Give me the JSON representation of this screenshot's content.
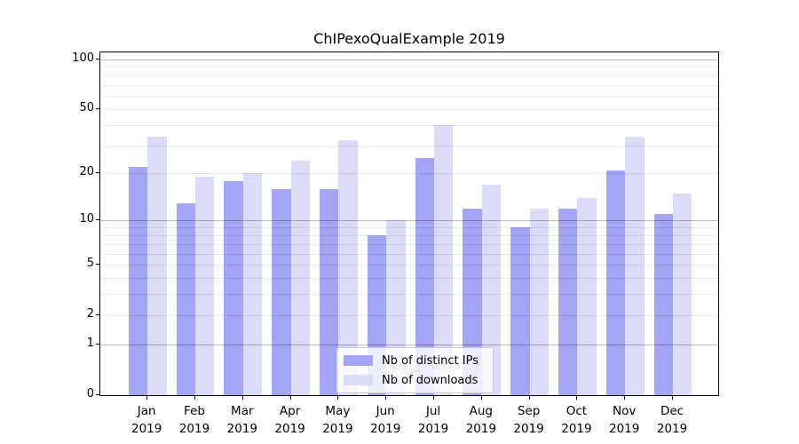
{
  "chart_data": {
    "type": "bar",
    "title": "ChIPexoQualExample 2019",
    "categories": [
      "Jan",
      "Feb",
      "Mar",
      "Apr",
      "May",
      "Jun",
      "Jul",
      "Aug",
      "Sep",
      "Oct",
      "Nov",
      "Dec"
    ],
    "year_label": "2019",
    "series": [
      {
        "name": "Nb of distinct IPs",
        "color": "#a5a5f6",
        "values": [
          22,
          13,
          18,
          16,
          16,
          8,
          25,
          12,
          9,
          12,
          21,
          11
        ]
      },
      {
        "name": "Nb of downloads",
        "color": "#dcdcf9",
        "values": [
          34,
          19,
          20,
          24,
          32,
          10,
          40,
          17,
          12,
          14,
          34,
          15
        ]
      }
    ],
    "y_axis": {
      "scale": "log1p",
      "tick_values": [
        100,
        50,
        20,
        10,
        5,
        2,
        1,
        0
      ],
      "tick_labels": [
        "100",
        "50",
        "20",
        "10",
        "5",
        "2",
        "1",
        "0"
      ],
      "major_gridlines": [
        1,
        10,
        100
      ],
      "minor_gridlines": [
        2,
        3,
        4,
        5,
        6,
        7,
        8,
        9,
        20,
        30,
        40,
        50,
        60,
        70,
        80,
        90
      ],
      "top_value": 110
    },
    "legend": {
      "position": "lower-center",
      "entries": [
        "Nb of distinct IPs",
        "Nb of downloads"
      ]
    },
    "grid": true,
    "grid_above_bars": true
  },
  "colors": {
    "background": "#ffffff",
    "spine": "#000000",
    "minor_grid": "rgba(0,0,0,0.09)",
    "major_grid": "rgba(0,0,0,0.28)",
    "legend_background": "rgba(255,255,255,0.8)",
    "legend_border": "#cccccc",
    "text": "#000000"
  }
}
